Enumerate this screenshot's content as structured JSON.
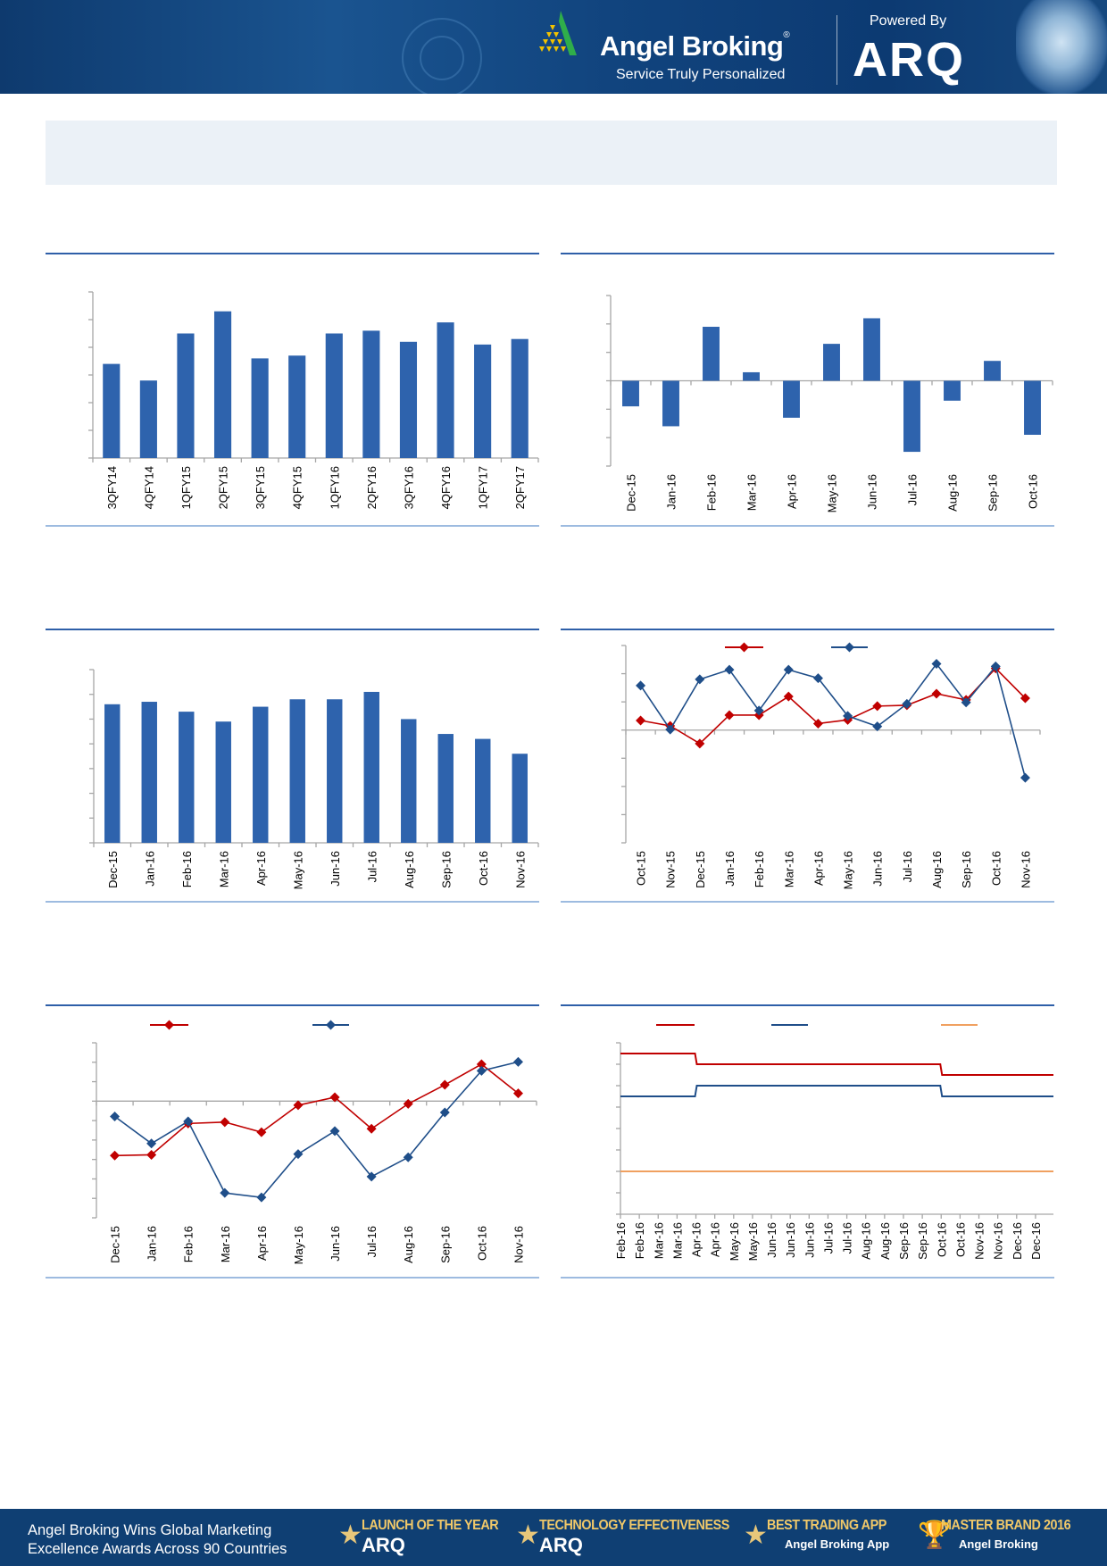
{
  "header": {
    "brand": "Angel Broking",
    "registered": "®",
    "tagline": "Service Truly Personalized",
    "powered_by": "Powered By",
    "arq": "ARQ"
  },
  "footer": {
    "headline_line1": "Angel Broking Wins Global Marketing",
    "headline_line2": "Excellence Awards Across 90 Countries",
    "awards": [
      {
        "title": "LAUNCH OF THE YEAR",
        "subtitle": "ARQ"
      },
      {
        "title": "TECHNOLOGY EFFECTIVENESS",
        "subtitle": "ARQ"
      },
      {
        "title": "BEST TRADING APP",
        "subtitle": "Angel Broking App"
      },
      {
        "title": "MASTER BRAND 2016",
        "subtitle": "Angel Broking"
      }
    ]
  },
  "chart_data": [
    {
      "type": "bar",
      "categories": [
        "3QFY14",
        "4QFY14",
        "1QFY15",
        "2QFY15",
        "3QFY15",
        "4QFY15",
        "1QFY16",
        "2QFY16",
        "3QFY16",
        "4QFY16",
        "1QFY17",
        "2QFY17"
      ],
      "values": [
        3.4,
        2.8,
        4.5,
        5.3,
        3.6,
        3.7,
        4.5,
        4.6,
        4.2,
        4.9,
        4.1,
        4.3
      ],
      "ylim": [
        0,
        6
      ],
      "ytick_step": 1,
      "color": "#2e63ad"
    },
    {
      "type": "bar",
      "categories": [
        "Dec-15",
        "Jan-16",
        "Feb-16",
        "Mar-16",
        "Apr-16",
        "May-16",
        "Jun-16",
        "Jul-16",
        "Aug-16",
        "Sep-16",
        "Oct-16"
      ],
      "values": [
        -0.9,
        -1.6,
        1.9,
        0.3,
        -1.3,
        1.3,
        2.2,
        -2.5,
        -0.7,
        0.7,
        -1.9
      ],
      "ylim": [
        -3,
        3
      ],
      "ytick_step": 1,
      "color": "#2e63ad"
    },
    {
      "type": "bar",
      "categories": [
        "Dec-15",
        "Jan-16",
        "Feb-16",
        "Mar-16",
        "Apr-16",
        "May-16",
        "Jun-16",
        "Jul-16",
        "Aug-16",
        "Sep-16",
        "Oct-16",
        "Nov-16"
      ],
      "values": [
        5.6,
        5.7,
        5.3,
        4.9,
        5.5,
        5.8,
        5.8,
        6.1,
        5.0,
        4.4,
        4.2,
        3.6
      ],
      "ylim": [
        0,
        7
      ],
      "ytick_step": 1,
      "color": "#2e63ad"
    },
    {
      "type": "line",
      "categories": [
        "Oct-15",
        "Nov-15",
        "Dec-15",
        "Jan-16",
        "Feb-16",
        "Mar-16",
        "Apr-16",
        "May-16",
        "Jun-16",
        "Jul-16",
        "Aug-16",
        "Sep-16",
        "Oct-16",
        "Nov-16"
      ],
      "series": [
        {
          "color": "#c00000",
          "values": [
            0.34,
            0.15,
            -0.48,
            0.53,
            0.53,
            1.19,
            0.23,
            0.36,
            0.85,
            0.88,
            1.29,
            1.07,
            2.19,
            1.13
          ]
        },
        {
          "color": "#1f4e89",
          "values": [
            1.58,
            0.02,
            1.8,
            2.14,
            0.69,
            2.14,
            1.84,
            0.5,
            0.13,
            0.93,
            2.35,
            0.98,
            2.26,
            -1.69
          ]
        }
      ],
      "ylim": [
        -4,
        3
      ],
      "ytick_step": 1
    },
    {
      "type": "line",
      "categories": [
        "Dec-15",
        "Jan-16",
        "Feb-16",
        "Mar-16",
        "Apr-16",
        "May-16",
        "Jun-16",
        "Jul-16",
        "Aug-16",
        "Sep-16",
        "Oct-16",
        "Nov-16"
      ],
      "series": [
        {
          "color": "#c00000",
          "values": [
            -2.8,
            -2.76,
            -1.15,
            -1.08,
            -1.6,
            -0.21,
            0.2,
            -1.42,
            -0.14,
            0.84,
            1.9,
            0.4
          ]
        },
        {
          "color": "#1f4e89",
          "values": [
            -0.79,
            -2.18,
            -1.04,
            -4.72,
            -4.95,
            -2.72,
            -1.54,
            -3.88,
            -2.89,
            -0.58,
            1.56,
            2.02
          ]
        }
      ],
      "ylim": [
        -6,
        3
      ],
      "ytick_step": 1
    },
    {
      "type": "line",
      "categories": [
        "Feb-16",
        "Feb-16",
        "Mar-16",
        "Mar-16",
        "Apr-16",
        "Apr-16",
        "May-16",
        "May-16",
        "Jun-16",
        "Jun-16",
        "Jun-16",
        "Jul-16",
        "Jul-16",
        "Aug-16",
        "Aug-16",
        "Sep-16",
        "Sep-16",
        "Oct-16",
        "Oct-16",
        "Nov-16",
        "Nov-16",
        "Dec-16",
        "Dec-16"
      ],
      "series": [
        {
          "color": "#c00000",
          "values": [
            6.75,
            6.75,
            6.75,
            6.75,
            6.5,
            6.5,
            6.5,
            6.5,
            6.5,
            6.5,
            6.5,
            6.5,
            6.5,
            6.5,
            6.5,
            6.5,
            6.5,
            6.25,
            6.25,
            6.25,
            6.25,
            6.25,
            6.25
          ]
        },
        {
          "color": "#1f4e89",
          "values": [
            5.75,
            5.75,
            5.75,
            5.75,
            6.0,
            6.0,
            6.0,
            6.0,
            6.0,
            6.0,
            6.0,
            6.0,
            6.0,
            6.0,
            6.0,
            6.0,
            6.0,
            5.75,
            5.75,
            5.75,
            5.75,
            5.75,
            5.75
          ]
        },
        {
          "color": "#f0a060",
          "values": [
            4,
            4,
            4,
            4,
            4,
            4,
            4,
            4,
            4,
            4,
            4,
            4,
            4,
            4,
            4,
            4,
            4,
            4,
            4,
            4,
            4,
            4,
            4
          ]
        }
      ],
      "ylim": [
        3,
        7
      ],
      "ytick_step": 0.5,
      "style": "step"
    }
  ]
}
